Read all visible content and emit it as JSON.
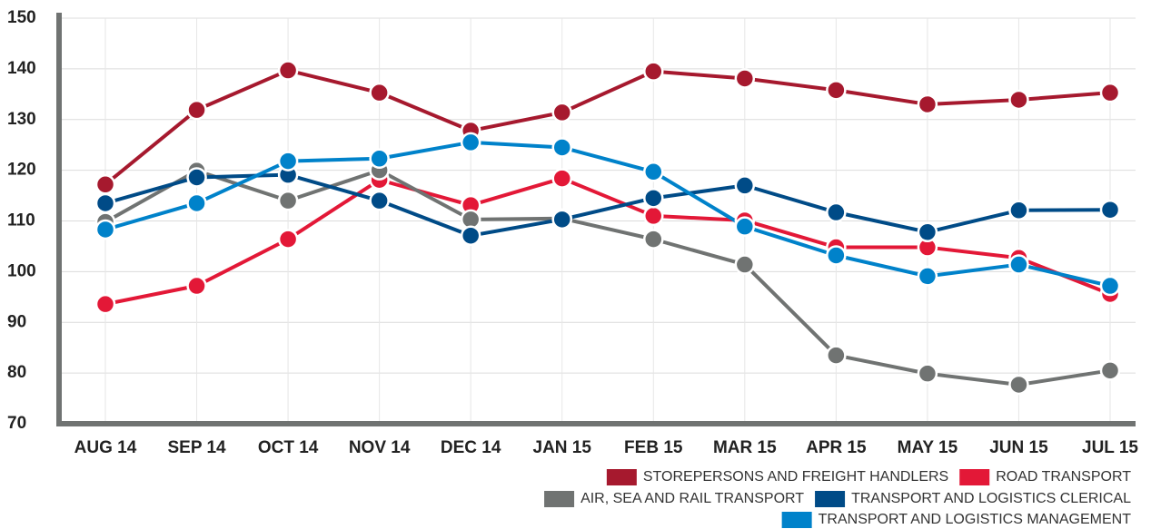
{
  "chart_data": {
    "type": "line",
    "categories": [
      "AUG 14",
      "SEP 14",
      "OCT 14",
      "NOV 14",
      "DEC 14",
      "JAN 15",
      "FEB 15",
      "MAR 15",
      "APR 15",
      "MAY 15",
      "JUN 15",
      "JUL 15"
    ],
    "series": [
      {
        "name": "STOREPERSONS AND FREIGHT HANDLERS",
        "color": "#a6192e",
        "values": [
          117.2,
          131.9,
          139.7,
          135.3,
          127.8,
          131.4,
          139.5,
          138.1,
          135.8,
          133,
          133.9,
          135.3
        ]
      },
      {
        "name": "ROAD TRANSPORT",
        "color": "#e31837",
        "values": [
          93.6,
          97.2,
          106.4,
          118.1,
          113.1,
          118.4,
          111,
          110.1,
          104.8,
          104.8,
          102.7,
          95.6
        ]
      },
      {
        "name": "AIR, SEA AND RAIL TRANSPORT",
        "color": "#707372",
        "values": [
          109.8,
          119.9,
          114,
          120,
          110.3,
          110.5,
          106.4,
          101.4,
          83.5,
          79.9,
          77.7,
          80.5
        ]
      },
      {
        "name": "TRANSPORT AND LOGISTICS CLERICAL",
        "color": "#004b87",
        "values": [
          113.5,
          118.6,
          119.1,
          114,
          107.1,
          110.3,
          114.5,
          117,
          111.7,
          107.8,
          112.1,
          112.2
        ]
      },
      {
        "name": "TRANSPORT AND LOGISTICS MANAGEMENT",
        "color": "#0082ca",
        "values": [
          108.3,
          113.5,
          121.8,
          122.3,
          125.5,
          124.5,
          119.7,
          108.9,
          103.2,
          99.1,
          101.4,
          97.2
        ]
      }
    ],
    "ylim": [
      70,
      150
    ],
    "yticks": [
      70,
      80,
      90,
      100,
      110,
      120,
      130,
      140,
      150
    ],
    "grid": true
  }
}
